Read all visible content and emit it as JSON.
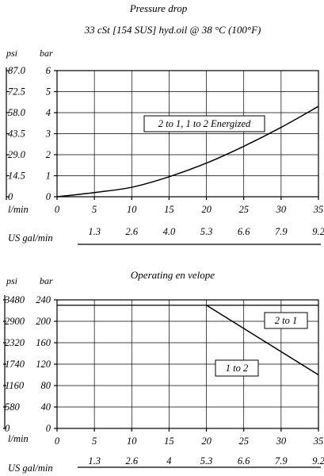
{
  "chart_data": [
    {
      "type": "line",
      "title": "Pressure drop",
      "subtitle": "33 cSt [154 SUS] hyd.oil @ 38    °C (100°F)",
      "xlabel": "l/min",
      "x2label": "US gal/min",
      "y_left_unit": "psi",
      "y_right_unit": "bar",
      "x_ticks": [
        0,
        5,
        10,
        15,
        20,
        25,
        30,
        35
      ],
      "x2_ticks": [
        "1.3",
        "2.6",
        "4.0",
        "5.3",
        "6.6",
        "7.9",
        "9.2"
      ],
      "y_ticks": [
        0,
        1,
        2,
        3,
        4,
        5,
        6
      ],
      "psi_ticks": [
        "0",
        "14.5",
        "29.0",
        "43.5",
        "58.0",
        "72.5",
        "87.0"
      ],
      "xlim": [
        0,
        35
      ],
      "ylim": [
        0,
        6
      ],
      "grid": true,
      "series": [
        {
          "name": "2 to 1, 1 to 2 Energized",
          "x": [
            0,
            5,
            10,
            15,
            20,
            25,
            30,
            35
          ],
          "y": [
            0,
            0.2,
            0.45,
            0.95,
            1.6,
            2.4,
            3.3,
            4.3
          ]
        }
      ]
    },
    {
      "type": "line",
      "title": "Operating en velope",
      "xlabel": "l/min",
      "x2label": "US gal/min",
      "y_left_unit": "psi",
      "y_right_unit": "bar",
      "x_ticks": [
        0,
        5,
        10,
        15,
        20,
        25,
        30,
        35
      ],
      "x2_ticks": [
        "1.3",
        "2.6",
        "4",
        "5.3",
        "6.6",
        "7.9",
        "9.2"
      ],
      "y_ticks": [
        0,
        40,
        80,
        120,
        160,
        200,
        240
      ],
      "psi_ticks": [
        "0",
        "580",
        "1160",
        "1740",
        "2320",
        "2900",
        "3480"
      ],
      "xlim": [
        0,
        35
      ],
      "ylim": [
        0,
        240
      ],
      "grid": true,
      "limit_line": 230,
      "series": [
        {
          "name": "envelope",
          "x": [
            20,
            35
          ],
          "y": [
            230,
            100
          ]
        }
      ],
      "annotations": [
        "2 to 1",
        "1 to 2"
      ]
    }
  ]
}
